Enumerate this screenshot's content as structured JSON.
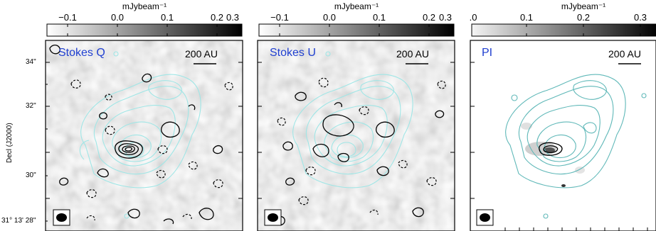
{
  "colorbar_unit": "mJybeam⁻¹",
  "panels": [
    {
      "label": "Stokes Q",
      "scalebar": "200 AU",
      "colorbar_ticks": [
        "−0.1",
        "0.0",
        "0.1",
        "0.2",
        "0.3"
      ]
    },
    {
      "label": "Stokes U",
      "scalebar": "200 AU",
      "colorbar_ticks": [
        "−0.1",
        "0.0",
        "0.1",
        "0.2",
        "0.3"
      ]
    },
    {
      "label": "PI",
      "scalebar": "200 AU",
      "colorbar_ticks": [
        ".0",
        "0.1",
        "0.2",
        "0.3"
      ]
    }
  ],
  "yaxis": {
    "title": "Decl (J2000)",
    "ticks": [
      "34\"",
      "32\"",
      "30\"",
      "31° 13' 28\""
    ]
  },
  "colors": {
    "stokes_contour": "#000000",
    "dust_contour_light": "#9fe6e6",
    "dust_contour_dark": "#5fb8b8",
    "label_blue": "#1f3fd0"
  }
}
